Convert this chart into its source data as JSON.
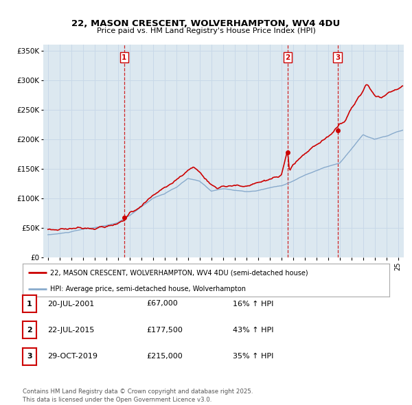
{
  "title_line1": "22, MASON CRESCENT, WOLVERHAMPTON, WV4 4DU",
  "title_line2": "Price paid vs. HM Land Registry's House Price Index (HPI)",
  "ylabel_ticks": [
    "£0",
    "£50K",
    "£100K",
    "£150K",
    "£200K",
    "£250K",
    "£300K",
    "£350K"
  ],
  "ytick_values": [
    0,
    50000,
    100000,
    150000,
    200000,
    250000,
    300000,
    350000
  ],
  "ylim": [
    0,
    360000
  ],
  "xlim_start": 1994.6,
  "xlim_end": 2025.5,
  "sale_dates": [
    2001.54,
    2015.55,
    2019.83
  ],
  "sale_prices": [
    67000,
    177500,
    215000
  ],
  "sale_labels": [
    "1",
    "2",
    "3"
  ],
  "red_line_color": "#cc0000",
  "blue_line_color": "#88aacc",
  "dashed_line_color": "#cc0000",
  "grid_color": "#c8d8e8",
  "background_color": "#dce8f0",
  "legend_label_red": "22, MASON CRESCENT, WOLVERHAMPTON, WV4 4DU (semi-detached house)",
  "legend_label_blue": "HPI: Average price, semi-detached house, Wolverhampton",
  "table_data": [
    [
      "1",
      "20-JUL-2001",
      "£67,000",
      "16% ↑ HPI"
    ],
    [
      "2",
      "22-JUL-2015",
      "£177,500",
      "43% ↑ HPI"
    ],
    [
      "3",
      "29-OCT-2019",
      "£215,000",
      "35% ↑ HPI"
    ]
  ],
  "footnote": "Contains HM Land Registry data © Crown copyright and database right 2025.\nThis data is licensed under the Open Government Licence v3.0."
}
